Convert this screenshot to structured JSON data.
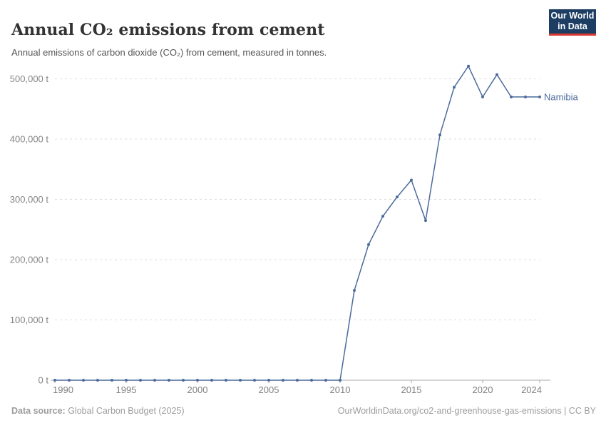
{
  "header": {
    "title": "Annual CO₂ emissions from cement",
    "subtitle": "Annual emissions of carbon dioxide (CO₂) from cement, measured in tonnes."
  },
  "logo": {
    "line1": "Our World",
    "line2": "in Data",
    "bg_color": "#1d3d63",
    "accent_color": "#d93a32"
  },
  "chart_data": {
    "type": "line",
    "title": "Annual CO₂ emissions from cement",
    "unit": "t",
    "x": [
      1990,
      1991,
      1992,
      1993,
      1994,
      1995,
      1996,
      1997,
      1998,
      1999,
      2000,
      2001,
      2002,
      2003,
      2004,
      2005,
      2006,
      2007,
      2008,
      2009,
      2010,
      2011,
      2012,
      2013,
      2014,
      2015,
      2016,
      2017,
      2018,
      2019,
      2020,
      2021,
      2022,
      2023,
      2024
    ],
    "series": [
      {
        "name": "Namibia",
        "color": "#4C6A9C",
        "values": [
          0,
          0,
          0,
          0,
          0,
          0,
          0,
          0,
          0,
          0,
          0,
          0,
          0,
          0,
          0,
          0,
          0,
          0,
          0,
          0,
          0,
          149000,
          225000,
          272000,
          304000,
          332000,
          265000,
          407000,
          486000,
          521000,
          470000,
          507000,
          470000,
          470000,
          470000
        ]
      }
    ],
    "xlim": [
      1990,
      2024
    ],
    "ylim": [
      0,
      540000
    ],
    "xticks": [
      1990,
      1995,
      2000,
      2005,
      2010,
      2015,
      2020,
      2024
    ],
    "yticks": [
      {
        "value": 0,
        "label": "0 t"
      },
      {
        "value": 100000,
        "label": "100,000 t"
      },
      {
        "value": 200000,
        "label": "200,000 t"
      },
      {
        "value": 300000,
        "label": "300,000 t"
      },
      {
        "value": 400000,
        "label": "400,000 t"
      },
      {
        "value": 500000,
        "label": "500,000 t"
      }
    ],
    "grid": true,
    "legend_position": "end-of-line",
    "colors": {
      "line": "#4C6A9C",
      "gridline": "#dcdcdc",
      "axis": "#a9a9a9",
      "tick_label": "#808080"
    }
  },
  "footer": {
    "source_label": "Data source:",
    "source": "Global Carbon Budget (2025)",
    "rights": "OurWorldinData.org/co2-and-greenhouse-gas-emissions | CC BY"
  }
}
